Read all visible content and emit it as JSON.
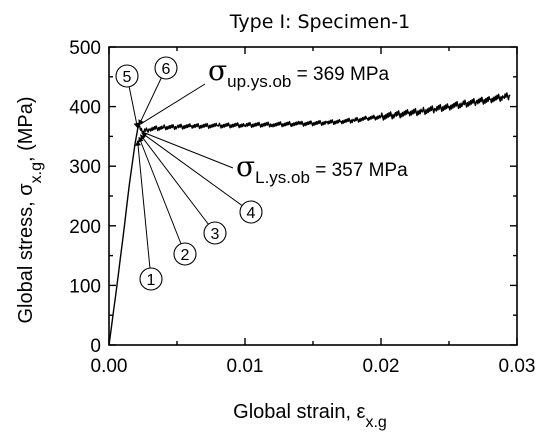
{
  "chart_data": {
    "type": "line",
    "title": "Type I: Specimen-1",
    "xlabel": "Global strain, ε",
    "xlabel_sub": "x.g",
    "ylabel": "Global stress, σ",
    "ylabel_sub": "x.g",
    "ylabel_unit": ", (MPa)",
    "xlim": [
      0.0,
      0.03
    ],
    "ylim": [
      0,
      500
    ],
    "x_ticks": [
      "0.00",
      "0.01",
      "0.02",
      "0.03"
    ],
    "y_ticks": [
      "0",
      "100",
      "200",
      "300",
      "400",
      "500"
    ],
    "grid": false,
    "series": [
      {
        "x": [
          0.0,
          0.0005,
          0.001,
          0.0015,
          0.0019,
          0.0021,
          0.0022,
          0.0025,
          0.003,
          0.004,
          0.005,
          0.006,
          0.008,
          0.01,
          0.012,
          0.014,
          0.016,
          0.017,
          0.018,
          0.019,
          0.02,
          0.021,
          0.022,
          0.023,
          0.024,
          0.025,
          0.026,
          0.027,
          0.028,
          0.029,
          0.0295
        ],
        "y": [
          0,
          85,
          175,
          270,
          335,
          362,
          369,
          358,
          362,
          365,
          366,
          367,
          368,
          369,
          370,
          371,
          373,
          375,
          377,
          380,
          383,
          386,
          389,
          392,
          396,
          400,
          404,
          408,
          412,
          416,
          418
        ]
      }
    ],
    "annotations": {
      "upper_yield": {
        "symbol": "σ",
        "subscript": "up.ys.ob",
        "text": " = 369 MPa",
        "x": 0.0022,
        "y": 369
      },
      "lower_yield": {
        "symbol": "σ",
        "subscript": "L.ys.ob",
        "text": " = 357 MPa",
        "x": 0.0025,
        "y": 357
      },
      "markers": [
        {
          "label": "①",
          "x": 0.0021,
          "y": 343
        },
        {
          "label": "②",
          "x": 0.0022,
          "y": 349
        },
        {
          "label": "③",
          "x": 0.0023,
          "y": 353
        },
        {
          "label": "④",
          "x": 0.0024,
          "y": 356
        },
        {
          "label": "⑤",
          "x": 0.0021,
          "y": 364
        },
        {
          "label": "⑥",
          "x": 0.0022,
          "y": 369
        }
      ]
    }
  }
}
